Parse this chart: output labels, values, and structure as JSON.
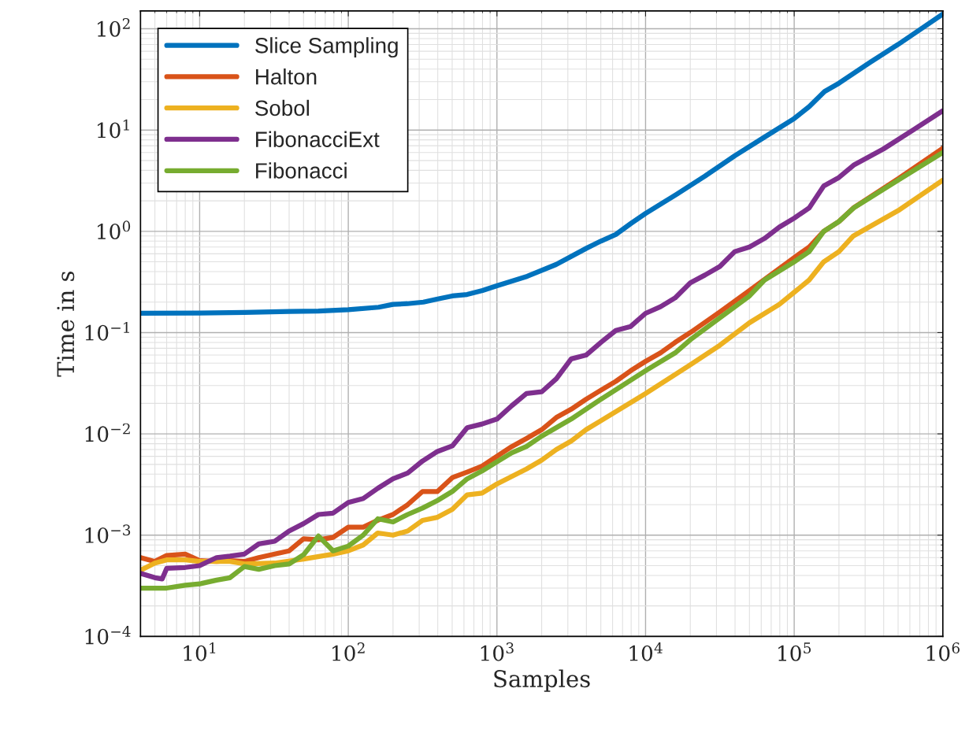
{
  "chart_data": {
    "type": "line",
    "xlabel": "Samples",
    "ylabel": "Time in s",
    "log": "xy",
    "grid": true,
    "legend": "top left",
    "line_style": "solid",
    "marker": "none",
    "xlim": [
      4,
      1000000
    ],
    "ylim": [
      0.0001,
      150
    ],
    "xticks": [
      {
        "value": 10,
        "label": "10$^{1}$"
      },
      {
        "value": 100,
        "label": "10$^{2}$"
      },
      {
        "value": 1000,
        "label": "10$^{3}$"
      },
      {
        "value": 10000,
        "label": "10$^{4}$"
      },
      {
        "value": 100000,
        "label": "10$^{5}$"
      },
      {
        "value": 1000000,
        "label": "10$^{6}$"
      }
    ],
    "yticks": [
      {
        "value": 0.0001,
        "label": "10$^{−4}$"
      },
      {
        "value": 0.001,
        "label": "10$^{−3}$"
      },
      {
        "value": 0.01,
        "label": "10$^{−2}$"
      },
      {
        "value": 0.1,
        "label": "10$^{−1}$"
      },
      {
        "value": 1,
        "label": "10$^{0}$"
      },
      {
        "value": 10,
        "label": "10$^{1}$"
      },
      {
        "value": 100,
        "label": "10$^{2}$"
      }
    ],
    "series": [
      {
        "name": "Slice Sampling",
        "color": "#0072bd",
        "x": [
          4,
          10,
          20,
          40,
          63,
          100,
          160,
          200,
          250,
          320,
          400,
          500,
          630,
          800,
          1000,
          1600,
          2500,
          4000,
          5000,
          6300,
          8000,
          10000,
          16000,
          25000,
          40000,
          63000,
          100000,
          126000,
          160000,
          200000,
          320000,
          500000,
          1000000
        ],
        "values": [
          0.155,
          0.156,
          0.158,
          0.162,
          0.163,
          0.168,
          0.178,
          0.19,
          0.193,
          0.2,
          0.215,
          0.23,
          0.238,
          0.26,
          0.29,
          0.36,
          0.47,
          0.68,
          0.8,
          0.93,
          1.2,
          1.5,
          2.3,
          3.5,
          5.6,
          8.5,
          13,
          17,
          24,
          29,
          46,
          70,
          140
        ]
      },
      {
        "name": "Halton",
        "color": "#d95319",
        "x": [
          4,
          5,
          6,
          8,
          10,
          13,
          16,
          20,
          25,
          32,
          40,
          50,
          63,
          79,
          100,
          126,
          158,
          200,
          251,
          316,
          398,
          501,
          631,
          794,
          1000,
          1260,
          1580,
          2000,
          2510,
          3160,
          3980,
          5010,
          6310,
          7940,
          10000,
          12600,
          15800,
          20000,
          31600,
          50000,
          100000,
          126000,
          158000,
          200000,
          250000,
          500000,
          1000000
        ],
        "values": [
          0.0006,
          0.00055,
          0.00063,
          0.00065,
          0.00056,
          0.00055,
          0.00056,
          0.00055,
          0.0006,
          0.00065,
          0.0007,
          0.00092,
          0.0009,
          0.00095,
          0.0012,
          0.0012,
          0.0014,
          0.0016,
          0.002,
          0.0027,
          0.0027,
          0.0037,
          0.0042,
          0.0048,
          0.006,
          0.0075,
          0.009,
          0.011,
          0.0145,
          0.0175,
          0.022,
          0.027,
          0.033,
          0.042,
          0.052,
          0.063,
          0.08,
          0.1,
          0.16,
          0.26,
          0.55,
          0.7,
          1.0,
          1.25,
          1.7,
          3.3,
          6.6
        ]
      },
      {
        "name": "Sobol",
        "color": "#edb120",
        "x": [
          4,
          5,
          6,
          8,
          10,
          16,
          20,
          32,
          50,
          79,
          100,
          126,
          158,
          200,
          251,
          316,
          398,
          501,
          631,
          794,
          1000,
          1580,
          2000,
          2510,
          3160,
          3980,
          5010,
          10000,
          20000,
          31600,
          50000,
          79400,
          100000,
          126000,
          158000,
          200000,
          250000,
          500000,
          1000000
        ],
        "values": [
          0.00045,
          0.00053,
          0.00057,
          0.00057,
          0.00055,
          0.00055,
          0.00052,
          0.00053,
          0.00058,
          0.00065,
          0.0007,
          0.0008,
          0.00105,
          0.001,
          0.0011,
          0.0014,
          0.0015,
          0.0018,
          0.0025,
          0.0026,
          0.0032,
          0.0045,
          0.0055,
          0.007,
          0.0085,
          0.011,
          0.0135,
          0.025,
          0.048,
          0.075,
          0.125,
          0.19,
          0.25,
          0.33,
          0.5,
          0.63,
          0.9,
          1.6,
          3.2
        ]
      },
      {
        "name": "FibonacciExt",
        "color": "#7e2f8e",
        "x": [
          4,
          5,
          5.6,
          6,
          8,
          10,
          13,
          16,
          20,
          25,
          32,
          40,
          50,
          63,
          79,
          100,
          126,
          158,
          200,
          251,
          316,
          398,
          501,
          631,
          794,
          1000,
          1260,
          1580,
          2000,
          2510,
          3160,
          3980,
          5010,
          6310,
          7940,
          10000,
          12600,
          15800,
          20000,
          25100,
          31600,
          39800,
          50000,
          63100,
          79400,
          100000,
          126000,
          158000,
          200000,
          251000,
          398000,
          631000,
          1000000
        ],
        "values": [
          0.00042,
          0.00038,
          0.00037,
          0.00047,
          0.00048,
          0.0005,
          0.0006,
          0.00062,
          0.00065,
          0.00082,
          0.00087,
          0.0011,
          0.0013,
          0.0016,
          0.00165,
          0.0021,
          0.0023,
          0.0029,
          0.0036,
          0.0041,
          0.0054,
          0.0067,
          0.0076,
          0.0115,
          0.0125,
          0.014,
          0.019,
          0.025,
          0.026,
          0.035,
          0.055,
          0.06,
          0.08,
          0.105,
          0.115,
          0.155,
          0.18,
          0.22,
          0.31,
          0.37,
          0.45,
          0.63,
          0.7,
          0.85,
          1.1,
          1.35,
          1.7,
          2.8,
          3.4,
          4.5,
          6.5,
          10,
          15.5
        ]
      },
      {
        "name": "Fibonacci",
        "color": "#77ac30",
        "x": [
          4,
          6,
          8,
          10,
          13,
          16,
          20,
          25,
          32,
          40,
          50,
          63,
          79,
          100,
          126,
          158,
          200,
          251,
          316,
          398,
          501,
          631,
          794,
          1000,
          1260,
          1580,
          2000,
          3160,
          5010,
          10000,
          15800,
          20000,
          31600,
          50000,
          63100,
          100000,
          126000,
          158000,
          200000,
          251000,
          500000,
          1000000
        ],
        "values": [
          0.0003,
          0.0003,
          0.00032,
          0.00033,
          0.00036,
          0.00038,
          0.00049,
          0.00046,
          0.0005,
          0.00052,
          0.00064,
          0.00098,
          0.0007,
          0.00078,
          0.001,
          0.00145,
          0.00135,
          0.0016,
          0.00185,
          0.0022,
          0.0027,
          0.0036,
          0.0043,
          0.0053,
          0.0065,
          0.0075,
          0.0095,
          0.014,
          0.022,
          0.042,
          0.063,
          0.085,
          0.14,
          0.23,
          0.33,
          0.5,
          0.63,
          1.0,
          1.25,
          1.7,
          3.2,
          6
        ]
      }
    ]
  }
}
